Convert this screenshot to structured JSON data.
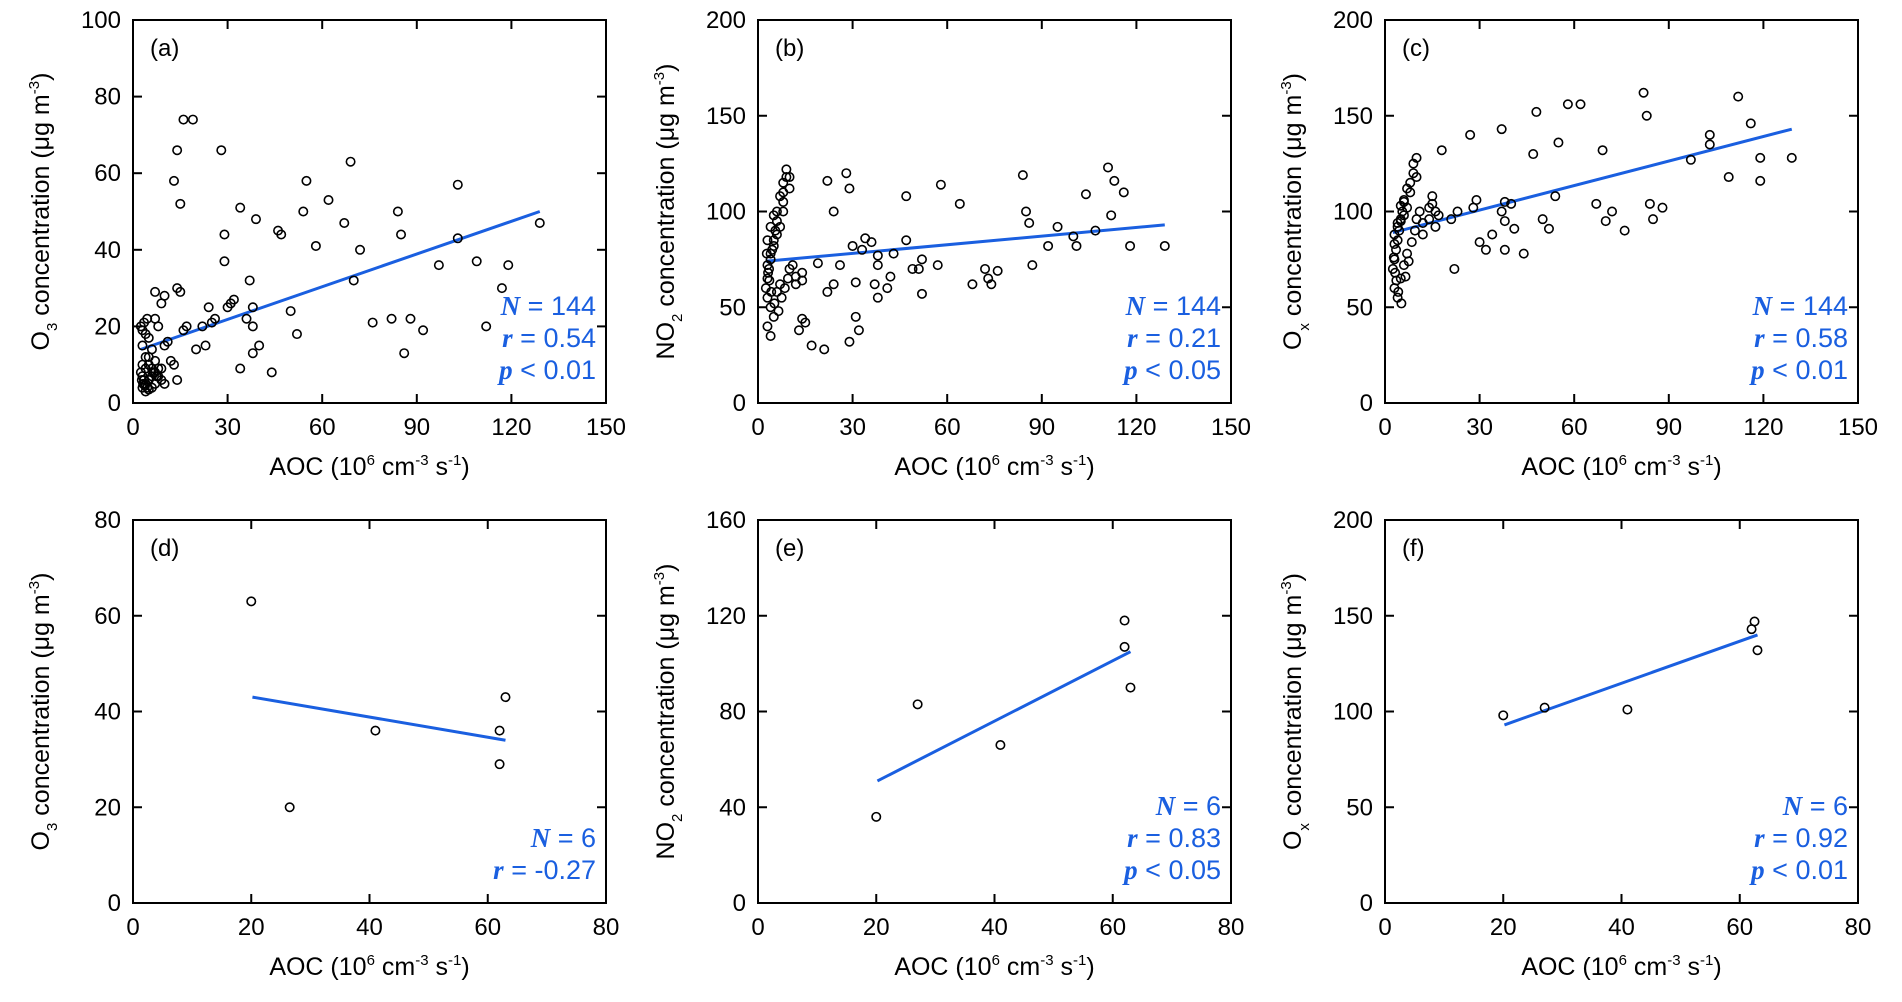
{
  "chart_data": [
    {
      "panel": "(a)",
      "type": "scatter",
      "xlabel": "AOC (10^6 cm^-3 s^-1)",
      "ylabel": "O3 concentration (μg m^-3)",
      "xlim": [
        0,
        150
      ],
      "ylim": [
        0,
        100
      ],
      "xticks": [
        0,
        30,
        60,
        90,
        120,
        150
      ],
      "yticks": [
        0,
        20,
        40,
        60,
        80,
        100
      ],
      "stats": {
        "N": "144",
        "r": "0.54",
        "p": "< 0.01"
      },
      "fit": [
        [
          2.5,
          14
        ],
        [
          129,
          50
        ]
      ],
      "points": [
        [
          2.5,
          20
        ],
        [
          3,
          19
        ],
        [
          3.5,
          21
        ],
        [
          4,
          18
        ],
        [
          4.5,
          22
        ],
        [
          5,
          17
        ],
        [
          3,
          15
        ],
        [
          4,
          12
        ],
        [
          5,
          10
        ],
        [
          6,
          9
        ],
        [
          2.5,
          8
        ],
        [
          3,
          7
        ],
        [
          3.5,
          6
        ],
        [
          4,
          5
        ],
        [
          4.5,
          4
        ],
        [
          5,
          3.5
        ],
        [
          6,
          4
        ],
        [
          7,
          5
        ],
        [
          3,
          4
        ],
        [
          4,
          3
        ],
        [
          5,
          6
        ],
        [
          6,
          7
        ],
        [
          7,
          8
        ],
        [
          8,
          9
        ],
        [
          5,
          12
        ],
        [
          6,
          14
        ],
        [
          7,
          11
        ],
        [
          8,
          7
        ],
        [
          9,
          6
        ],
        [
          10,
          5
        ],
        [
          3,
          10
        ],
        [
          4,
          9
        ],
        [
          2.8,
          6
        ],
        [
          3.2,
          5
        ],
        [
          3.8,
          4.5
        ],
        [
          6.5,
          8
        ],
        [
          7.5,
          7
        ],
        [
          9,
          9
        ],
        [
          8,
          20
        ],
        [
          7,
          22
        ],
        [
          10,
          15
        ],
        [
          11,
          16
        ],
        [
          9,
          26
        ],
        [
          10,
          28
        ],
        [
          7,
          29
        ],
        [
          12,
          11
        ],
        [
          13,
          10
        ],
        [
          14,
          6
        ],
        [
          13,
          58
        ],
        [
          14,
          66
        ],
        [
          15,
          52
        ],
        [
          14,
          30
        ],
        [
          15,
          29
        ],
        [
          16,
          19
        ],
        [
          17,
          20
        ],
        [
          16,
          74
        ],
        [
          19,
          74
        ],
        [
          22,
          20
        ],
        [
          23,
          15
        ],
        [
          20,
          14
        ],
        [
          24,
          25
        ],
        [
          25,
          21
        ],
        [
          26,
          22
        ],
        [
          28,
          66
        ],
        [
          29,
          37
        ],
        [
          29,
          44
        ],
        [
          30,
          25
        ],
        [
          31,
          26
        ],
        [
          32,
          27
        ],
        [
          34,
          51
        ],
        [
          34,
          9
        ],
        [
          36,
          22
        ],
        [
          37,
          32
        ],
        [
          38,
          20
        ],
        [
          38,
          13
        ],
        [
          38,
          25
        ],
        [
          39,
          48
        ],
        [
          40,
          15
        ],
        [
          44,
          8
        ],
        [
          46,
          45
        ],
        [
          47,
          44
        ],
        [
          50,
          24
        ],
        [
          52,
          18
        ],
        [
          54,
          50
        ],
        [
          55,
          58
        ],
        [
          58,
          41
        ],
        [
          62,
          53
        ],
        [
          67,
          47
        ],
        [
          69,
          63
        ],
        [
          70,
          32
        ],
        [
          72,
          40
        ],
        [
          76,
          21
        ],
        [
          82,
          22
        ],
        [
          84,
          50
        ],
        [
          85,
          44
        ],
        [
          86,
          13
        ],
        [
          88,
          22
        ],
        [
          92,
          19
        ],
        [
          97,
          36
        ],
        [
          103,
          57
        ],
        [
          103,
          43
        ],
        [
          109,
          37
        ],
        [
          112,
          20
        ],
        [
          117,
          30
        ],
        [
          119,
          36
        ],
        [
          129,
          47
        ]
      ]
    },
    {
      "panel": "(b)",
      "type": "scatter",
      "xlabel": "AOC (10^6 cm^-3 s^-1)",
      "ylabel": "NO2 concentration (μg m^-3)",
      "xlim": [
        0,
        150
      ],
      "ylim": [
        0,
        200
      ],
      "xticks": [
        0,
        30,
        60,
        90,
        120,
        150
      ],
      "yticks": [
        0,
        50,
        100,
        150,
        200
      ],
      "stats": {
        "N": "144",
        "r": "0.21",
        "p": "< 0.05"
      },
      "fit": [
        [
          2.5,
          74
        ],
        [
          129,
          93
        ]
      ],
      "points": [
        [
          2.5,
          60
        ],
        [
          3,
          65
        ],
        [
          3.5,
          70
        ],
        [
          4,
          75
        ],
        [
          4.5,
          80
        ],
        [
          5,
          85
        ],
        [
          5.5,
          90
        ],
        [
          6,
          95
        ],
        [
          3,
          55
        ],
        [
          4,
          50
        ],
        [
          5,
          45
        ],
        [
          6,
          58
        ],
        [
          7,
          62
        ],
        [
          3,
          72
        ],
        [
          4,
          78
        ],
        [
          5,
          82
        ],
        [
          6,
          88
        ],
        [
          7,
          92
        ],
        [
          8,
          100
        ],
        [
          8,
          105
        ],
        [
          8,
          110
        ],
        [
          8,
          115
        ],
        [
          9,
          118
        ],
        [
          9,
          122
        ],
        [
          10,
          112
        ],
        [
          10,
          118
        ],
        [
          7,
          108
        ],
        [
          6,
          100
        ],
        [
          5,
          98
        ],
        [
          4,
          92
        ],
        [
          3,
          85
        ],
        [
          2.8,
          78
        ],
        [
          3.2,
          68
        ],
        [
          3.6,
          64
        ],
        [
          4.2,
          58
        ],
        [
          5.2,
          52
        ],
        [
          6.5,
          48
        ],
        [
          7.5,
          55
        ],
        [
          8.5,
          60
        ],
        [
          9.5,
          65
        ],
        [
          10,
          70
        ],
        [
          11,
          72
        ],
        [
          12,
          66
        ],
        [
          12,
          62
        ],
        [
          14,
          64
        ],
        [
          14,
          68
        ],
        [
          3,
          40
        ],
        [
          4,
          35
        ],
        [
          13,
          38
        ],
        [
          14,
          44
        ],
        [
          15,
          42
        ],
        [
          17,
          30
        ],
        [
          19,
          73
        ],
        [
          21,
          28
        ],
        [
          22,
          58
        ],
        [
          22,
          116
        ],
        [
          24,
          100
        ],
        [
          24,
          62
        ],
        [
          26,
          72
        ],
        [
          28,
          120
        ],
        [
          29,
          32
        ],
        [
          29,
          112
        ],
        [
          30,
          82
        ],
        [
          31,
          63
        ],
        [
          31,
          45
        ],
        [
          32,
          38
        ],
        [
          33,
          80
        ],
        [
          34,
          86
        ],
        [
          36,
          84
        ],
        [
          37,
          62
        ],
        [
          38,
          77
        ],
        [
          38,
          55
        ],
        [
          38,
          72
        ],
        [
          41,
          60
        ],
        [
          42,
          66
        ],
        [
          43,
          78
        ],
        [
          47,
          85
        ],
        [
          47,
          108
        ],
        [
          49,
          70
        ],
        [
          51,
          70
        ],
        [
          52,
          57
        ],
        [
          52,
          75
        ],
        [
          57,
          72
        ],
        [
          58,
          114
        ],
        [
          64,
          104
        ],
        [
          68,
          62
        ],
        [
          72,
          70
        ],
        [
          73,
          65
        ],
        [
          74,
          62
        ],
        [
          76,
          69
        ],
        [
          84,
          119
        ],
        [
          85,
          100
        ],
        [
          86,
          94
        ],
        [
          87,
          72
        ],
        [
          92,
          82
        ],
        [
          95,
          92
        ],
        [
          100,
          87
        ],
        [
          101,
          82
        ],
        [
          104,
          109
        ],
        [
          107,
          90
        ],
        [
          111,
          123
        ],
        [
          112,
          98
        ],
        [
          113,
          116
        ],
        [
          116,
          110
        ],
        [
          118,
          82
        ],
        [
          129,
          82
        ]
      ]
    },
    {
      "panel": "(c)",
      "type": "scatter",
      "xlabel": "AOC (10^6 cm^-3 s^-1)",
      "ylabel": "Ox concentration (μg m^-3)",
      "xlim": [
        0,
        150
      ],
      "ylim": [
        0,
        200
      ],
      "xticks": [
        0,
        30,
        60,
        90,
        120,
        150
      ],
      "yticks": [
        0,
        50,
        100,
        150,
        200
      ],
      "stats": {
        "N": "144",
        "r": "0.58",
        "p": "< 0.01"
      },
      "fit": [
        [
          2.5,
          89
        ],
        [
          129,
          143
        ]
      ],
      "points": [
        [
          2.5,
          70
        ],
        [
          3,
          75
        ],
        [
          3.5,
          80
        ],
        [
          4,
          85
        ],
        [
          4.5,
          90
        ],
        [
          5,
          95
        ],
        [
          5.5,
          100
        ],
        [
          6,
          105
        ],
        [
          3,
          60
        ],
        [
          4,
          55
        ],
        [
          5,
          65
        ],
        [
          6,
          72
        ],
        [
          7,
          78
        ],
        [
          3,
          88
        ],
        [
          4,
          92
        ],
        [
          5,
          96
        ],
        [
          6,
          98
        ],
        [
          7,
          102
        ],
        [
          8,
          110
        ],
        [
          8,
          115
        ],
        [
          9,
          120
        ],
        [
          9,
          125
        ],
        [
          10,
          128
        ],
        [
          10,
          118
        ],
        [
          7,
          112
        ],
        [
          6,
          106
        ],
        [
          5,
          103
        ],
        [
          4,
          94
        ],
        [
          3,
          83
        ],
        [
          2.8,
          76
        ],
        [
          3.2,
          68
        ],
        [
          3.6,
          64
        ],
        [
          4.2,
          58
        ],
        [
          5.2,
          52
        ],
        [
          6.5,
          66
        ],
        [
          7.5,
          74
        ],
        [
          8.5,
          84
        ],
        [
          9.5,
          90
        ],
        [
          10,
          96
        ],
        [
          11,
          100
        ],
        [
          12,
          94
        ],
        [
          12,
          88
        ],
        [
          14,
          96
        ],
        [
          14,
          102
        ],
        [
          15,
          104
        ],
        [
          15,
          108
        ],
        [
          16,
          100
        ],
        [
          16,
          92
        ],
        [
          17,
          98
        ],
        [
          18,
          132
        ],
        [
          21,
          96
        ],
        [
          22,
          70
        ],
        [
          23,
          100
        ],
        [
          27,
          140
        ],
        [
          28,
          102
        ],
        [
          29,
          106
        ],
        [
          30,
          84
        ],
        [
          32,
          80
        ],
        [
          34,
          88
        ],
        [
          37,
          143
        ],
        [
          37,
          100
        ],
        [
          38,
          105
        ],
        [
          38,
          95
        ],
        [
          38,
          80
        ],
        [
          40,
          104
        ],
        [
          41,
          91
        ],
        [
          44,
          78
        ],
        [
          47,
          130
        ],
        [
          48,
          152
        ],
        [
          50,
          96
        ],
        [
          52,
          91
        ],
        [
          54,
          108
        ],
        [
          55,
          136
        ],
        [
          58,
          156
        ],
        [
          62,
          156
        ],
        [
          67,
          104
        ],
        [
          69,
          132
        ],
        [
          70,
          95
        ],
        [
          72,
          100
        ],
        [
          76,
          90
        ],
        [
          82,
          162
        ],
        [
          83,
          150
        ],
        [
          84,
          104
        ],
        [
          85,
          96
        ],
        [
          88,
          102
        ],
        [
          97,
          127
        ],
        [
          103,
          135
        ],
        [
          103,
          140
        ],
        [
          109,
          118
        ],
        [
          112,
          160
        ],
        [
          116,
          146
        ],
        [
          119,
          116
        ],
        [
          119,
          128
        ],
        [
          129,
          128
        ]
      ]
    },
    {
      "panel": "(d)",
      "type": "scatter",
      "xlabel": "AOC (10^6 cm^-3 s^-1)",
      "ylabel": "O3 concentration (μg m^-3)",
      "xlim": [
        0,
        80
      ],
      "ylim": [
        0,
        80
      ],
      "xticks": [
        0,
        20,
        40,
        60,
        80
      ],
      "yticks": [
        0,
        20,
        40,
        60,
        80
      ],
      "stats": {
        "N": "6",
        "r": "-0.27"
      },
      "fit": [
        [
          20.2,
          43
        ],
        [
          63,
          34
        ]
      ],
      "points": [
        [
          20,
          63
        ],
        [
          26.5,
          20
        ],
        [
          41,
          36
        ],
        [
          62,
          36
        ],
        [
          62,
          29
        ],
        [
          63,
          43
        ]
      ]
    },
    {
      "panel": "(e)",
      "type": "scatter",
      "xlabel": "AOC (10^6 cm^-3 s^-1)",
      "ylabel": "NO2 concentration (μg m^-3)",
      "xlim": [
        0,
        80
      ],
      "ylim": [
        0,
        160
      ],
      "xticks": [
        0,
        20,
        40,
        60,
        80
      ],
      "yticks": [
        0,
        40,
        80,
        120,
        160
      ],
      "stats": {
        "N": "6",
        "r": "0.83",
        "p": "< 0.05"
      },
      "fit": [
        [
          20.2,
          51
        ],
        [
          63,
          105
        ]
      ],
      "points": [
        [
          20,
          36
        ],
        [
          27,
          83
        ],
        [
          41,
          66
        ],
        [
          62,
          118
        ],
        [
          62,
          107
        ],
        [
          63,
          90
        ]
      ]
    },
    {
      "panel": "(f)",
      "type": "scatter",
      "xlabel": "AOC (10^6 cm^-3 s^-1)",
      "ylabel": "Ox concentration (μg m^-3)",
      "xlim": [
        0,
        80
      ],
      "ylim": [
        0,
        200
      ],
      "xticks": [
        0,
        20,
        40,
        60,
        80
      ],
      "yticks": [
        0,
        50,
        100,
        150,
        200
      ],
      "stats": {
        "N": "6",
        "r": "0.92",
        "p": "< 0.01"
      },
      "fit": [
        [
          20.2,
          93
        ],
        [
          63,
          140
        ]
      ],
      "points": [
        [
          20,
          98
        ],
        [
          27,
          102
        ],
        [
          41,
          101
        ],
        [
          62,
          143
        ],
        [
          62.5,
          147
        ],
        [
          63,
          132
        ]
      ]
    }
  ]
}
